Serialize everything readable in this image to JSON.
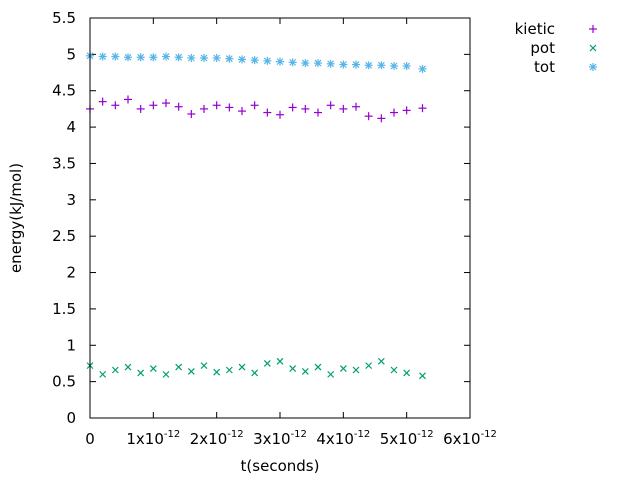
{
  "chart_data": {
    "type": "scatter",
    "xlabel": "t(seconds)",
    "ylabel": "energy(kJ/mol)",
    "xlim": [
      0,
      6e-12
    ],
    "ylim": [
      0,
      5.5
    ],
    "grid": false,
    "legend_placement": "outside-top-right",
    "x_ticks": [
      {
        "value": 0,
        "mantissa": "0",
        "exponent": ""
      },
      {
        "value": 1e-12,
        "mantissa": "1x10",
        "exponent": "-12"
      },
      {
        "value": 2e-12,
        "mantissa": "2x10",
        "exponent": "-12"
      },
      {
        "value": 3e-12,
        "mantissa": "3x10",
        "exponent": "-12"
      },
      {
        "value": 4e-12,
        "mantissa": "4x10",
        "exponent": "-12"
      },
      {
        "value": 5e-12,
        "mantissa": "5x10",
        "exponent": "-12"
      },
      {
        "value": 6e-12,
        "mantissa": "6x10",
        "exponent": "-12"
      }
    ],
    "y_ticks": [
      {
        "value": 0,
        "label": "0"
      },
      {
        "value": 0.5,
        "label": "0.5"
      },
      {
        "value": 1,
        "label": "1"
      },
      {
        "value": 1.5,
        "label": "1.5"
      },
      {
        "value": 2,
        "label": "2"
      },
      {
        "value": 2.5,
        "label": "2.5"
      },
      {
        "value": 3,
        "label": "3"
      },
      {
        "value": 3.5,
        "label": "3.5"
      },
      {
        "value": 4,
        "label": "4"
      },
      {
        "value": 4.5,
        "label": "4.5"
      },
      {
        "value": 5,
        "label": "5"
      },
      {
        "value": 5.5,
        "label": "5.5"
      }
    ],
    "series": [
      {
        "name": "kietic",
        "marker": "plus",
        "color": "#9400d3",
        "x": [
          0,
          2e-13,
          4e-13,
          6e-13,
          8e-13,
          1e-12,
          1.2e-12,
          1.4e-12,
          1.6e-12,
          1.8e-12,
          2e-12,
          2.2e-12,
          2.4e-12,
          2.6e-12,
          2.8e-12,
          3e-12,
          3.2e-12,
          3.4e-12,
          3.6e-12,
          3.8e-12,
          4e-12,
          4.2e-12,
          4.4e-12,
          4.6e-12,
          4.8e-12,
          5e-12,
          5.25e-12
        ],
        "y": [
          4.25,
          4.35,
          4.3,
          4.38,
          4.25,
          4.3,
          4.33,
          4.28,
          4.18,
          4.25,
          4.3,
          4.27,
          4.22,
          4.3,
          4.2,
          4.17,
          4.27,
          4.25,
          4.2,
          4.3,
          4.25,
          4.28,
          4.15,
          4.12,
          4.2,
          4.23,
          4.26
        ]
      },
      {
        "name": "pot",
        "marker": "cross",
        "color": "#009e73",
        "x": [
          0,
          2e-13,
          4e-13,
          6e-13,
          8e-13,
          1e-12,
          1.2e-12,
          1.4e-12,
          1.6e-12,
          1.8e-12,
          2e-12,
          2.2e-12,
          2.4e-12,
          2.6e-12,
          2.8e-12,
          3e-12,
          3.2e-12,
          3.4e-12,
          3.6e-12,
          3.8e-12,
          4e-12,
          4.2e-12,
          4.4e-12,
          4.6e-12,
          4.8e-12,
          5e-12,
          5.25e-12
        ],
        "y": [
          0.72,
          0.6,
          0.66,
          0.7,
          0.62,
          0.68,
          0.6,
          0.7,
          0.64,
          0.72,
          0.63,
          0.66,
          0.7,
          0.62,
          0.75,
          0.78,
          0.68,
          0.64,
          0.7,
          0.6,
          0.68,
          0.66,
          0.72,
          0.78,
          0.66,
          0.62,
          0.58
        ]
      },
      {
        "name": "tot",
        "marker": "star",
        "color": "#56b4e9",
        "x": [
          0,
          2e-13,
          4e-13,
          6e-13,
          8e-13,
          1e-12,
          1.2e-12,
          1.4e-12,
          1.6e-12,
          1.8e-12,
          2e-12,
          2.2e-12,
          2.4e-12,
          2.6e-12,
          2.8e-12,
          3e-12,
          3.2e-12,
          3.4e-12,
          3.6e-12,
          3.8e-12,
          4e-12,
          4.2e-12,
          4.4e-12,
          4.6e-12,
          4.8e-12,
          5e-12,
          5.25e-12
        ],
        "y": [
          4.98,
          4.97,
          4.97,
          4.96,
          4.96,
          4.96,
          4.97,
          4.96,
          4.95,
          4.95,
          4.95,
          4.94,
          4.93,
          4.92,
          4.91,
          4.9,
          4.89,
          4.88,
          4.88,
          4.87,
          4.86,
          4.86,
          4.85,
          4.85,
          4.84,
          4.84,
          4.8
        ]
      }
    ]
  }
}
